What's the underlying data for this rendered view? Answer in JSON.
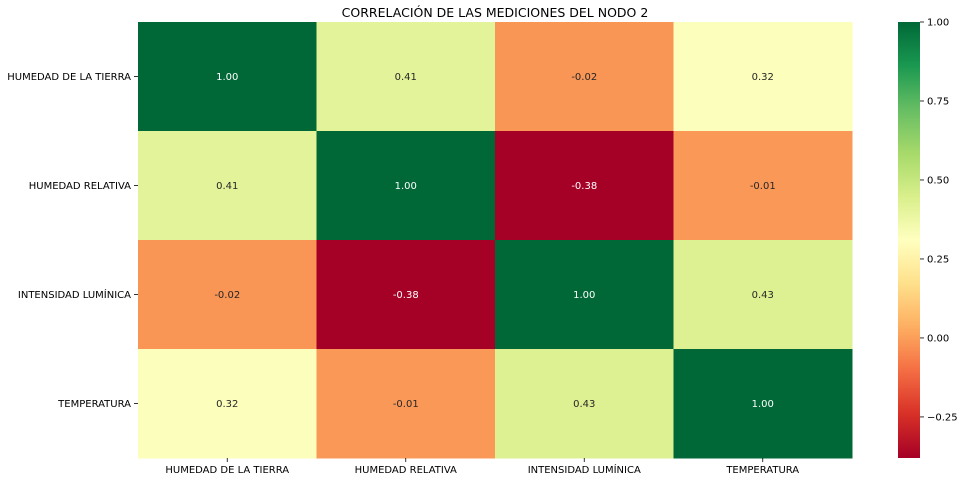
{
  "chart_data": {
    "type": "heatmap",
    "title": "CORRELACIÓN DE LAS MEDICIONES DEL NODO 2",
    "x_labels": [
      "HUMEDAD DE LA TIERRA",
      "HUMEDAD RELATIVA",
      "INTENSIDAD LUMÍNICA",
      "TEMPERATURA"
    ],
    "y_labels": [
      "HUMEDAD DE LA TIERRA",
      "HUMEDAD RELATIVA",
      "INTENSIDAD LUMÍNICA",
      "TEMPERATURA"
    ],
    "values": [
      [
        1.0,
        0.41,
        -0.02,
        0.32
      ],
      [
        0.41,
        1.0,
        -0.38,
        -0.01
      ],
      [
        -0.02,
        -0.38,
        1.0,
        0.43
      ],
      [
        0.32,
        -0.01,
        0.43,
        1.0
      ]
    ],
    "value_labels": [
      [
        "1.00",
        "0.41",
        "-0.02",
        "0.32"
      ],
      [
        "0.41",
        "1.00",
        "-0.38",
        "-0.01"
      ],
      [
        "-0.02",
        "-0.38",
        "1.00",
        "0.43"
      ],
      [
        "0.32",
        "-0.01",
        "0.43",
        "1.00"
      ]
    ],
    "colormap": "RdYlGn",
    "vmin": -0.38,
    "vmax": 1.0,
    "colorbar": {
      "ticks": [
        -0.25,
        0.0,
        0.25,
        0.5,
        0.75,
        1.0
      ],
      "tick_labels": [
        "−0.25",
        "0.00",
        "0.25",
        "0.50",
        "0.75",
        "1.00"
      ],
      "placement": "right"
    },
    "xlabel": "",
    "ylabel": ""
  }
}
